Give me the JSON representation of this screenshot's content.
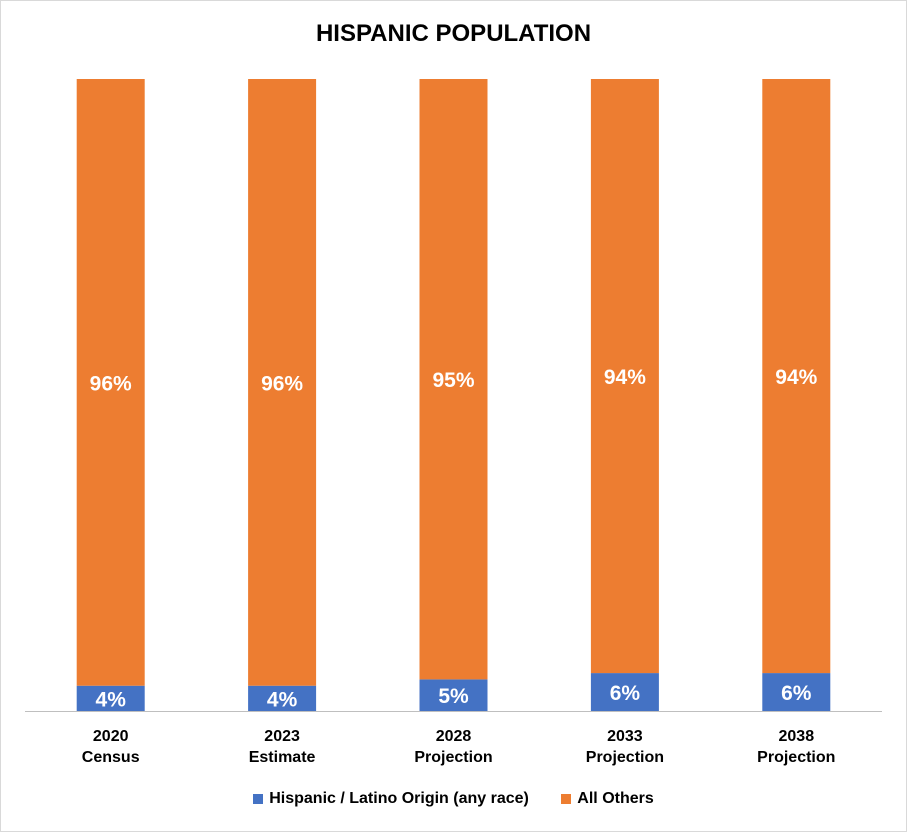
{
  "chart_data": {
    "type": "bar",
    "stacked": true,
    "percent": true,
    "title": "HISPANIC POPULATION",
    "categories": [
      [
        "2020",
        "Census"
      ],
      [
        "2023",
        "Estimate"
      ],
      [
        "2028",
        "Projection"
      ],
      [
        "2033",
        "Projection"
      ],
      [
        "2038",
        "Projection"
      ]
    ],
    "series": [
      {
        "name": "Hispanic / Latino Origin (any race)",
        "color": "#4472c4",
        "values": [
          4,
          4,
          5,
          6,
          6
        ],
        "labels": [
          "4%",
          "4%",
          "5%",
          "6%",
          "6%"
        ]
      },
      {
        "name": "All Others",
        "color": "#ed7d31",
        "values": [
          96,
          96,
          95,
          94,
          94
        ],
        "labels": [
          "96%",
          "96%",
          "95%",
          "94%",
          "94%"
        ]
      }
    ],
    "ylim": [
      0,
      100
    ],
    "legend_position": "bottom",
    "grid": false
  }
}
